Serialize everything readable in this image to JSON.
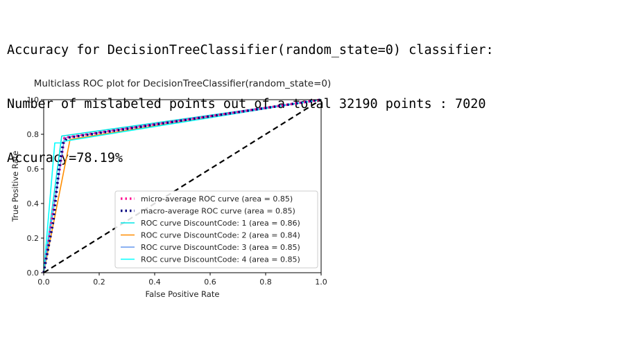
{
  "output": {
    "line1": "Accuracy for DecisionTreeClassifier(random_state=0) classifier:",
    "line2": "Number of mislabeled points out of a total 32190 points : 7020",
    "line3": "Accuracy=78.19%"
  },
  "chart_data": {
    "type": "line",
    "title": "Multiclass ROC plot for DecisionTreeClassifier(random_state=0)",
    "xlabel": "False Positive Rate",
    "ylabel": "True Positive Rate",
    "xlim": [
      0,
      1.0
    ],
    "ylim": [
      0,
      1.0
    ],
    "xticks": [
      "0.0",
      "0.2",
      "0.4",
      "0.6",
      "0.8",
      "1.0"
    ],
    "yticks": [
      "0.0",
      "0.2",
      "0.4",
      "0.6",
      "0.8",
      "1.0"
    ],
    "legend_position": "lower-right",
    "series": [
      {
        "name": "micro-average ROC curve (area = 0.85)",
        "color": "#ff1493",
        "style": "dotted",
        "points": [
          [
            0,
            0
          ],
          [
            0.075,
            0.78
          ],
          [
            1,
            1
          ]
        ]
      },
      {
        "name": "macro-average ROC curve (area = 0.85)",
        "color": "#000080",
        "style": "dotted",
        "points": [
          [
            0,
            0
          ],
          [
            0.035,
            0.3
          ],
          [
            0.055,
            0.6
          ],
          [
            0.07,
            0.75
          ],
          [
            0.085,
            0.78
          ],
          [
            1,
            1
          ]
        ]
      },
      {
        "name": "ROC curve DiscountCode: 1 (area = 0.86)",
        "color": "#00e5e5",
        "style": "solid",
        "points": [
          [
            0,
            0
          ],
          [
            0.065,
            0.79
          ],
          [
            1,
            1
          ]
        ]
      },
      {
        "name": "ROC curve DiscountCode: 2 (area = 0.84)",
        "color": "#ff8c00",
        "style": "solid",
        "points": [
          [
            0,
            0
          ],
          [
            0.095,
            0.77
          ],
          [
            1,
            1
          ]
        ]
      },
      {
        "name": "ROC curve DiscountCode: 3 (area = 0.85)",
        "color": "#6495ed",
        "style": "solid",
        "points": [
          [
            0,
            0
          ],
          [
            0.075,
            0.78
          ],
          [
            1,
            1
          ]
        ]
      },
      {
        "name": "ROC curve DiscountCode: 4 (area = 0.85)",
        "color": "#00ffff",
        "style": "solid",
        "points": [
          [
            0,
            0
          ],
          [
            0.04,
            0.75
          ],
          [
            0.075,
            0.75
          ],
          [
            0.075,
            0.76
          ],
          [
            1,
            1
          ]
        ]
      },
      {
        "name": "chance",
        "color": "#000000",
        "style": "dashed",
        "legend": false,
        "points": [
          [
            0,
            0
          ],
          [
            1,
            1
          ]
        ]
      }
    ]
  }
}
